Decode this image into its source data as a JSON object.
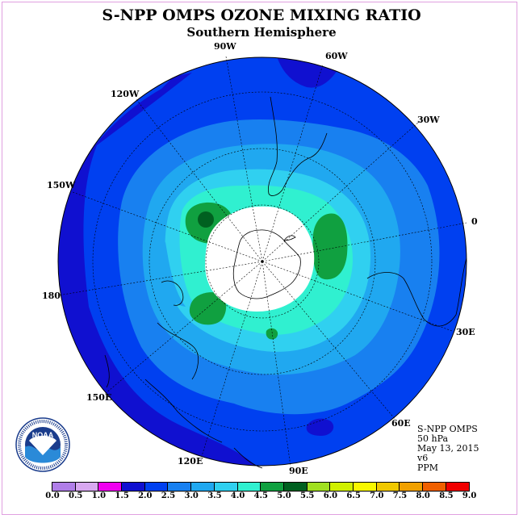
{
  "title": "S-NPP OMPS OZONE MIXING RATIO",
  "subtitle": "Southern Hemisphere",
  "map": {
    "projection": "south-polar-stereographic",
    "longitude_labels": [
      "90W",
      "60W",
      "120W",
      "30W",
      "150W",
      "0",
      "180",
      "30E",
      "150E",
      "60E",
      "120E",
      "90E"
    ],
    "land_outline_color": "#000000",
    "no_data_color": "#ffffff"
  },
  "info": {
    "instrument": "S-NPP OMPS",
    "level": "50 hPa",
    "date": "May 13, 2015",
    "version": "v6",
    "units": "PPM"
  },
  "colorbar": {
    "ticks": [
      "0.0",
      "0.5",
      "1.0",
      "1.5",
      "2.0",
      "2.5",
      "3.0",
      "3.5",
      "4.0",
      "4.5",
      "5.0",
      "5.5",
      "6.0",
      "6.5",
      "7.0",
      "7.5",
      "8.0",
      "8.5",
      "9.0"
    ],
    "colors": [
      "#b07ee8",
      "#d8a8f0",
      "#f000f0",
      "#1010d0",
      "#0040f0",
      "#1880f0",
      "#20a8f0",
      "#30d0f0",
      "#30f0d0",
      "#10a040",
      "#006020",
      "#a0e020",
      "#d0f000",
      "#f8f800",
      "#f0c800",
      "#f0a000",
      "#f06000",
      "#f00000",
      "#805040"
    ]
  },
  "logo": {
    "name": "NOAA",
    "ring_text": "NATIONAL OCEANIC AND ATMOSPHERIC ADMINISTRATION · U.S. DEPARTMENT OF COMMERCE"
  }
}
